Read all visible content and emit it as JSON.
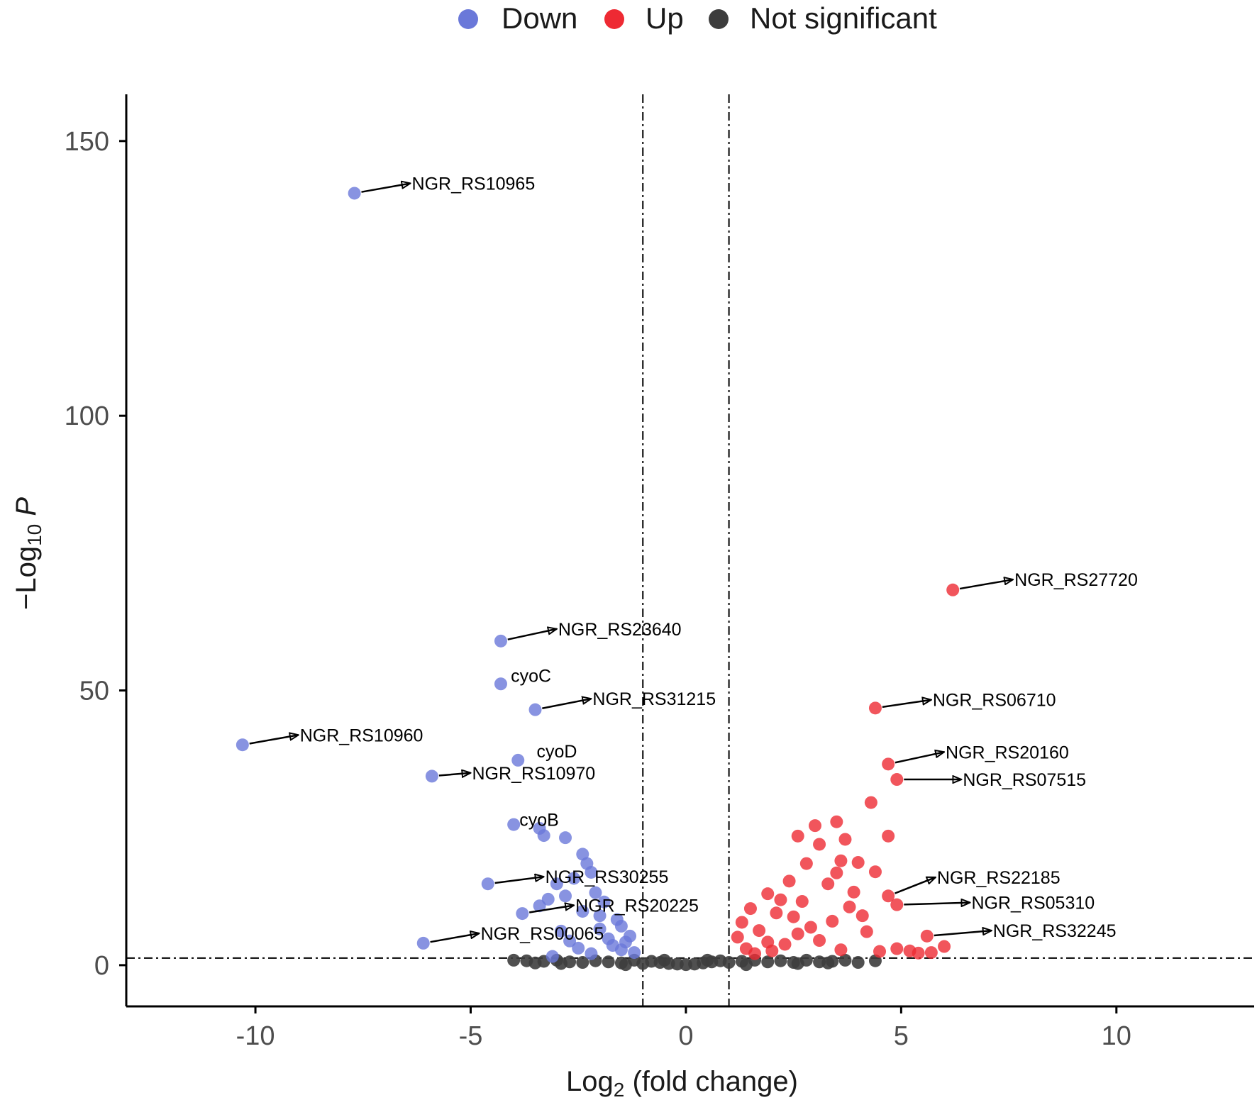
{
  "chart_data": {
    "type": "scatter",
    "title": "",
    "xlabel": "Log2 (fold change)",
    "ylabel": "-Log10 P",
    "xlim": [
      -13.0,
      13.2
    ],
    "ylim": [
      -7.5,
      158.5
    ],
    "x_ticks": [
      -10,
      -5,
      0,
      5,
      10
    ],
    "x_tick_labels": [
      "-10",
      "-5",
      "0",
      "5",
      "10"
    ],
    "y_ticks": [
      0,
      50,
      100,
      150
    ],
    "y_tick_labels": [
      "0",
      "50",
      "100",
      "150"
    ],
    "thresholds": {
      "fold_change": [
        -1,
        1
      ],
      "p_value_line": 1.3
    },
    "legend": {
      "position": "top",
      "entries": [
        {
          "name": "Down",
          "color": "#6a78d9"
        },
        {
          "name": "Up",
          "color": "#ee2a33"
        },
        {
          "name": "Not significant",
          "color": "#3d3d3d"
        }
      ]
    },
    "series": [
      {
        "name": "Down",
        "color": "#6a78d9",
        "points": [
          [
            -7.7,
            140.5
          ],
          [
            -10.3,
            40.1
          ],
          [
            -5.9,
            34.4
          ],
          [
            -4.3,
            59.0
          ],
          [
            -4.3,
            51.2
          ],
          [
            -3.5,
            46.5
          ],
          [
            -3.9,
            37.3
          ],
          [
            -4.0,
            25.6
          ],
          [
            -3.4,
            24.9
          ],
          [
            -3.3,
            23.6
          ],
          [
            -2.8,
            23.2
          ],
          [
            -2.4,
            20.2
          ],
          [
            -2.3,
            18.5
          ],
          [
            -2.2,
            16.9
          ],
          [
            -2.6,
            15.8
          ],
          [
            -4.6,
            14.8
          ],
          [
            -3.0,
            14.8
          ],
          [
            -3.8,
            9.4
          ],
          [
            -6.1,
            4.0
          ],
          [
            -3.2,
            12.0
          ],
          [
            -2.1,
            13.2
          ],
          [
            -1.9,
            11.5
          ],
          [
            -2.4,
            9.8
          ],
          [
            -1.6,
            8.3
          ],
          [
            -2.9,
            6.2
          ],
          [
            -2.0,
            6.6
          ],
          [
            -1.8,
            4.8
          ],
          [
            -1.4,
            4.2
          ],
          [
            -2.5,
            3.1
          ],
          [
            -1.5,
            2.8
          ],
          [
            -1.2,
            2.3
          ],
          [
            -2.2,
            2.1
          ],
          [
            -3.1,
            1.6
          ],
          [
            -1.7,
            3.6
          ],
          [
            -2.7,
            4.4
          ],
          [
            -1.3,
            5.3
          ],
          [
            -2.0,
            9.0
          ],
          [
            -1.5,
            7.1
          ],
          [
            -3.4,
            10.8
          ],
          [
            -2.8,
            12.6
          ]
        ]
      },
      {
        "name": "Up",
        "color": "#ee2a33",
        "points": [
          [
            6.2,
            68.3
          ],
          [
            4.4,
            46.8
          ],
          [
            4.7,
            36.6
          ],
          [
            4.9,
            33.8
          ],
          [
            4.3,
            29.6
          ],
          [
            4.7,
            23.5
          ],
          [
            3.5,
            26.1
          ],
          [
            3.0,
            25.4
          ],
          [
            2.6,
            23.5
          ],
          [
            3.7,
            22.9
          ],
          [
            3.1,
            22.0
          ],
          [
            3.6,
            19.0
          ],
          [
            4.0,
            18.7
          ],
          [
            2.8,
            18.5
          ],
          [
            4.4,
            17.0
          ],
          [
            4.7,
            12.6
          ],
          [
            4.9,
            11.0
          ],
          [
            5.6,
            5.3
          ],
          [
            3.3,
            14.8
          ],
          [
            2.4,
            15.3
          ],
          [
            1.9,
            13.0
          ],
          [
            2.7,
            11.6
          ],
          [
            1.5,
            10.3
          ],
          [
            2.1,
            9.5
          ],
          [
            3.9,
            13.3
          ],
          [
            1.3,
            7.8
          ],
          [
            2.5,
            8.8
          ],
          [
            1.7,
            6.3
          ],
          [
            3.4,
            8.0
          ],
          [
            1.2,
            5.1
          ],
          [
            2.9,
            6.9
          ],
          [
            1.9,
            4.2
          ],
          [
            2.3,
            3.8
          ],
          [
            1.4,
            3.0
          ],
          [
            3.1,
            4.5
          ],
          [
            4.2,
            6.1
          ],
          [
            5.2,
            2.6
          ],
          [
            5.7,
            2.3
          ],
          [
            6.0,
            3.4
          ],
          [
            4.9,
            3.0
          ],
          [
            3.6,
            2.8
          ],
          [
            4.5,
            2.5
          ],
          [
            5.4,
            2.2
          ],
          [
            2.0,
            2.6
          ],
          [
            1.6,
            2.1
          ],
          [
            2.6,
            5.7
          ],
          [
            3.8,
            10.6
          ],
          [
            4.1,
            9.0
          ],
          [
            2.2,
            11.9
          ],
          [
            3.5,
            16.8
          ]
        ]
      },
      {
        "name": "Not significant",
        "color": "#3d3d3d",
        "points": [
          [
            -4.0,
            0.9
          ],
          [
            -3.7,
            0.8
          ],
          [
            -3.3,
            0.7
          ],
          [
            -3.0,
            0.9
          ],
          [
            -2.7,
            0.6
          ],
          [
            -2.4,
            0.5
          ],
          [
            -2.1,
            0.8
          ],
          [
            -1.8,
            0.6
          ],
          [
            -1.5,
            0.4
          ],
          [
            -1.2,
            0.9
          ],
          [
            -1.0,
            0.3
          ],
          [
            -0.8,
            0.7
          ],
          [
            -0.6,
            0.5
          ],
          [
            -0.4,
            0.3
          ],
          [
            -0.2,
            0.2
          ],
          [
            0.0,
            0.1
          ],
          [
            0.2,
            0.2
          ],
          [
            0.4,
            0.4
          ],
          [
            0.6,
            0.6
          ],
          [
            0.8,
            0.8
          ],
          [
            1.0,
            0.5
          ],
          [
            1.3,
            0.7
          ],
          [
            1.6,
            0.9
          ],
          [
            1.9,
            0.6
          ],
          [
            2.2,
            0.8
          ],
          [
            2.5,
            0.5
          ],
          [
            2.8,
            0.9
          ],
          [
            3.1,
            0.6
          ],
          [
            3.4,
            0.7
          ],
          [
            3.7,
            0.9
          ],
          [
            4.0,
            0.5
          ],
          [
            4.4,
            0.8
          ],
          [
            -3.5,
            0.4
          ],
          [
            -2.9,
            0.3
          ],
          [
            2.6,
            0.3
          ],
          [
            3.3,
            0.4
          ],
          [
            -1.4,
            0.1
          ],
          [
            1.4,
            0.1
          ],
          [
            -0.5,
            0.9
          ],
          [
            0.5,
            0.9
          ]
        ]
      }
    ],
    "annotations": [
      {
        "label": "NGR_RS10965",
        "x": -7.7,
        "y": 140.5,
        "tx": -6.4,
        "ty": 142.3,
        "arrow": true
      },
      {
        "label": "NGR_RS10960",
        "x": -10.3,
        "y": 40.1,
        "tx": -9.0,
        "ty": 41.9,
        "arrow": true
      },
      {
        "label": "NGR_RS10970",
        "x": -5.9,
        "y": 34.4,
        "tx": -5.0,
        "ty": 35.0,
        "arrow": true
      },
      {
        "label": "NGR_RS23640",
        "x": -4.3,
        "y": 59.0,
        "tx": -3.0,
        "ty": 61.2,
        "arrow": true
      },
      {
        "label": "cyoC",
        "x": -4.3,
        "y": 51.2,
        "tx": -4.1,
        "ty": 52.7,
        "arrow": false
      },
      {
        "label": "NGR_RS31215",
        "x": -3.5,
        "y": 46.5,
        "tx": -2.2,
        "ty": 48.5,
        "arrow": true
      },
      {
        "label": "cyoD",
        "x": -3.9,
        "y": 37.3,
        "tx": -3.5,
        "ty": 39.0,
        "arrow": false
      },
      {
        "label": "cyoB",
        "x": -4.0,
        "y": 25.6,
        "tx": -3.9,
        "ty": 26.5,
        "arrow": false
      },
      {
        "label": "NGR_RS30255",
        "x": -4.6,
        "y": 14.8,
        "tx": -3.3,
        "ty": 16.1,
        "arrow": true
      },
      {
        "label": "NGR_RS20225",
        "x": -3.8,
        "y": 9.4,
        "tx": -2.6,
        "ty": 10.9,
        "arrow": true
      },
      {
        "label": "NGR_RS00065",
        "x": -6.1,
        "y": 4.0,
        "tx": -4.8,
        "ty": 5.8,
        "arrow": true
      },
      {
        "label": "NGR_RS27720",
        "x": 6.2,
        "y": 68.3,
        "tx": 7.6,
        "ty": 70.2,
        "arrow": true
      },
      {
        "label": "NGR_RS06710",
        "x": 4.4,
        "y": 46.8,
        "tx": 5.7,
        "ty": 48.3,
        "arrow": true
      },
      {
        "label": "NGR_RS20160",
        "x": 4.7,
        "y": 36.6,
        "tx": 6.0,
        "ty": 38.8,
        "arrow": true
      },
      {
        "label": "NGR_RS07515",
        "x": 4.9,
        "y": 33.8,
        "tx": 6.4,
        "ty": 33.8,
        "arrow": true
      },
      {
        "label": "NGR_RS22185",
        "x": 4.7,
        "y": 12.6,
        "tx": 5.8,
        "ty": 16.0,
        "arrow": true
      },
      {
        "label": "NGR_RS05310",
        "x": 4.9,
        "y": 11.0,
        "tx": 6.6,
        "ty": 11.4,
        "arrow": true
      },
      {
        "label": "NGR_RS32245",
        "x": 5.6,
        "y": 5.3,
        "tx": 7.1,
        "ty": 6.3,
        "arrow": true
      }
    ]
  }
}
